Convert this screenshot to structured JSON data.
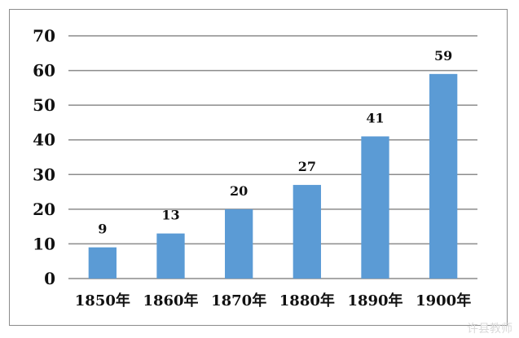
{
  "chart_data": {
    "type": "bar",
    "categories": [
      "1850年",
      "1860年",
      "1870年",
      "1880年",
      "1890年",
      "1900年"
    ],
    "values": [
      9,
      13,
      20,
      27,
      41,
      59
    ],
    "data_labels": [
      "9",
      "13",
      "20",
      "27",
      "41",
      "59"
    ],
    "title": "",
    "xlabel": "",
    "ylabel": "",
    "ylim": [
      0,
      70
    ],
    "yticks": [
      "0",
      "10",
      "20",
      "30",
      "40",
      "50",
      "60",
      "70"
    ],
    "grid": true,
    "legend": "none",
    "bar_color": "#5b9bd5",
    "gridline_color": "#8c8c8c"
  },
  "watermark": "许县教师"
}
